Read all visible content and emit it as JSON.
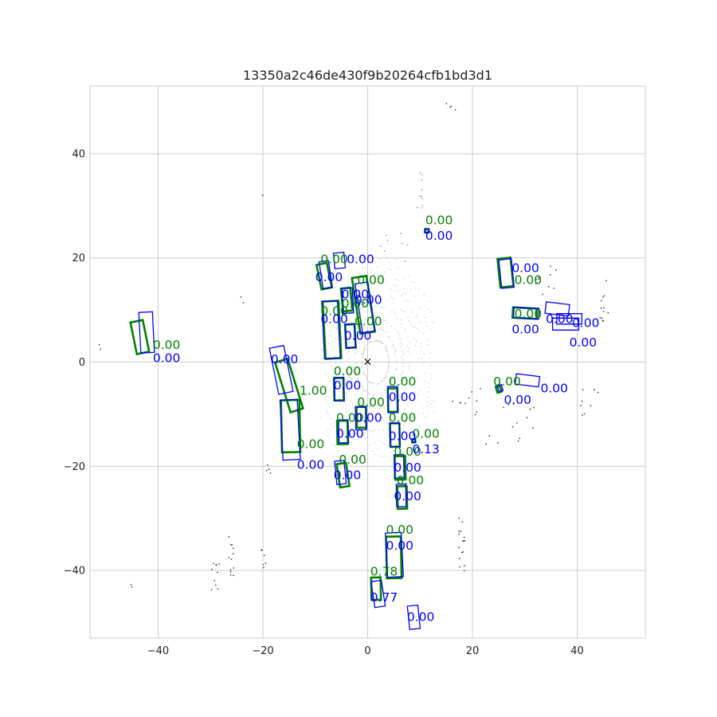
{
  "chart_data": {
    "type": "scatter",
    "title": "13350a2c46de430f9b20264cfb1bd3d1",
    "xlabel": "",
    "ylabel": "",
    "xlim": [
      -53,
      53
    ],
    "ylim": [
      -53,
      53
    ],
    "xticks": [
      -40,
      -20,
      0,
      20,
      40
    ],
    "yticks": [
      -40,
      -20,
      0,
      20,
      40
    ],
    "xtick_labels": [
      "−40",
      "−20",
      "0",
      "20",
      "40"
    ],
    "ytick_labels": [
      "−40",
      "−20",
      "0",
      "20",
      "40"
    ],
    "grid": true,
    "ego_marker": {
      "x": 0,
      "y": 0,
      "symbol": "×",
      "color": "#000000"
    },
    "colors": {
      "ground_truth": "#008000",
      "prediction": "#0000ff",
      "lidar_near": "#c8c8c8",
      "lidar_far": "#444444"
    },
    "ground_truth_boxes": [
      {
        "cx": -43.5,
        "cy": 4.8,
        "w": 2.4,
        "l": 6.2,
        "yaw": 0.2,
        "label": "0.00",
        "lx": -41,
        "ly": 2.5
      },
      {
        "cx": -8.3,
        "cy": 16.5,
        "w": 2.0,
        "l": 4.8,
        "yaw": 0.2,
        "label": "0.00",
        "lx": -9,
        "ly": 19
      },
      {
        "cx": -6.8,
        "cy": 6.2,
        "w": 3.0,
        "l": 11.0,
        "yaw": 0.05,
        "label": "0.00",
        "lx": -9,
        "ly": 9
      },
      {
        "cx": -4.0,
        "cy": 12.0,
        "w": 1.8,
        "l": 4.4,
        "yaw": 0.1,
        "label": "0.00",
        "lx": -5,
        "ly": 10.5
      },
      {
        "cx": -3.3,
        "cy": 5.0,
        "w": 1.8,
        "l": 4.5,
        "yaw": 0.05,
        "label": "0.00",
        "lx": -2.5,
        "ly": 7
      },
      {
        "cx": -0.8,
        "cy": 11.0,
        "w": 2.8,
        "l": 10.8,
        "yaw": 0.15,
        "label": "0.00",
        "lx": -2,
        "ly": 15
      },
      {
        "cx": -5.5,
        "cy": -5.2,
        "w": 1.8,
        "l": 4.3,
        "yaw": 0.02,
        "label": "0.00",
        "lx": -6.5,
        "ly": -2.5
      },
      {
        "cx": -15.0,
        "cy": -4.5,
        "w": 2.5,
        "l": 10.0,
        "yaw": 0.3,
        "label": "1.00",
        "lx": -13,
        "ly": -6.3
      },
      {
        "cx": -14.7,
        "cy": -12.3,
        "w": 3.5,
        "l": 10.0,
        "yaw": 0.02,
        "label": "0.00",
        "lx": -13.5,
        "ly": -16.5
      },
      {
        "cx": -4.8,
        "cy": -13.5,
        "w": 2.0,
        "l": 4.5,
        "yaw": 0.02,
        "label": "0.00",
        "lx": -6,
        "ly": -11.5
      },
      {
        "cx": -1.2,
        "cy": -10.6,
        "w": 1.8,
        "l": 4.0,
        "yaw": 0.02,
        "label": "0.00",
        "lx": -2,
        "ly": -8.5
      },
      {
        "cx": 4.8,
        "cy": -7.3,
        "w": 1.8,
        "l": 4.5,
        "yaw": 0.02,
        "label": "0.00",
        "lx": 4,
        "ly": -4.5
      },
      {
        "cx": 5.2,
        "cy": -14.0,
        "w": 1.8,
        "l": 4.5,
        "yaw": 0.02,
        "label": "0.00",
        "lx": 4,
        "ly": -11.5
      },
      {
        "cx": -4.7,
        "cy": -21.7,
        "w": 1.8,
        "l": 4.5,
        "yaw": 0.15,
        "label": "0.00",
        "lx": -5.5,
        "ly": -19.5
      },
      {
        "cx": 6.2,
        "cy": -20.3,
        "w": 2.0,
        "l": 4.5,
        "yaw": 0.02,
        "label": "0.00",
        "lx": 5,
        "ly": -18
      },
      {
        "cx": 6.6,
        "cy": -26.0,
        "w": 1.8,
        "l": 4.3,
        "yaw": 0.02,
        "label": "0.00",
        "lx": 5.5,
        "ly": -23.5
      },
      {
        "cx": 5.0,
        "cy": -37.5,
        "w": 2.8,
        "l": 8.0,
        "yaw": 0.02,
        "label": "0.00",
        "lx": 3.5,
        "ly": -33
      },
      {
        "cx": 1.6,
        "cy": -43.5,
        "w": 1.8,
        "l": 4.3,
        "yaw": 0.02,
        "label": "0.78",
        "lx": 0.5,
        "ly": -41
      },
      {
        "cx": 8.8,
        "cy": -15.1,
        "w": 0.6,
        "l": 0.6,
        "yaw": 0.0,
        "label": "0.00",
        "lx": 8.5,
        "ly": -14.5
      },
      {
        "cx": 11.3,
        "cy": 25.2,
        "w": 0.7,
        "l": 0.7,
        "yaw": 0.0,
        "label": "0.00",
        "lx": 11,
        "ly": 26.5
      },
      {
        "cx": 26.3,
        "cy": 17.2,
        "w": 2.5,
        "l": 5.5,
        "yaw": 0.1,
        "label": "0.00",
        "lx": 28,
        "ly": 15
      },
      {
        "cx": 30.0,
        "cy": 9.4,
        "w": 2.0,
        "l": 4.6,
        "yaw": 1.52,
        "label": "0.00",
        "lx": 28,
        "ly": 8.5
      },
      {
        "cx": 25.0,
        "cy": -5.2,
        "w": 0.8,
        "l": 1.2,
        "yaw": 0.3,
        "label": "0.00",
        "lx": 24,
        "ly": -4.5
      }
    ],
    "prediction_boxes": [
      {
        "cx": -42.2,
        "cy": 5.7,
        "w": 2.6,
        "l": 7.8,
        "yaw": 0.05,
        "label": "0.00",
        "lx": -41,
        "ly": 0
      },
      {
        "cx": -5.4,
        "cy": 19.5,
        "w": 2.0,
        "l": 3.0,
        "yaw": 0.1,
        "label": "0.00",
        "lx": -4,
        "ly": 19
      },
      {
        "cx": -8.0,
        "cy": 16.8,
        "w": 1.8,
        "l": 5.2,
        "yaw": 0.15,
        "label": "0.00",
        "lx": -10,
        "ly": 15.5
      },
      {
        "cx": -7.0,
        "cy": 6.2,
        "w": 3.0,
        "l": 11.0,
        "yaw": 0.05,
        "label": "0.00",
        "lx": -9,
        "ly": 7.5
      },
      {
        "cx": -3.8,
        "cy": 11.8,
        "w": 2.0,
        "l": 4.8,
        "yaw": 0.05,
        "label": "0.00",
        "lx": -5,
        "ly": 12.2
      },
      {
        "cx": -3.3,
        "cy": 5.0,
        "w": 1.8,
        "l": 4.5,
        "yaw": 0.05,
        "label": "0.00",
        "lx": -4.5,
        "ly": 4.3
      },
      {
        "cx": -0.5,
        "cy": 10.5,
        "w": 2.4,
        "l": 9.5,
        "yaw": 0.15,
        "label": "0.00",
        "lx": -2.5,
        "ly": 11.2
      },
      {
        "cx": -16.5,
        "cy": -1.5,
        "w": 2.8,
        "l": 9.0,
        "yaw": 0.2,
        "label": "0.00",
        "lx": -18.5,
        "ly": -0.2
      },
      {
        "cx": -14.8,
        "cy": -13.0,
        "w": 3.3,
        "l": 11.5,
        "yaw": 0.05,
        "label": "0.00",
        "lx": -13.5,
        "ly": -20.5
      },
      {
        "cx": -5.4,
        "cy": -5.2,
        "w": 1.8,
        "l": 4.5,
        "yaw": 0.02,
        "label": "0.00",
        "lx": -6.5,
        "ly": -5.3
      },
      {
        "cx": -4.6,
        "cy": -13.3,
        "w": 1.8,
        "l": 4.4,
        "yaw": 0.02,
        "label": "0.00",
        "lx": -6,
        "ly": -14.5
      },
      {
        "cx": -1.3,
        "cy": -10.8,
        "w": 2.0,
        "l": 4.4,
        "yaw": 0.02,
        "label": "0.00",
        "lx": -2.5,
        "ly": -11.5
      },
      {
        "cx": 4.8,
        "cy": -7.2,
        "w": 1.8,
        "l": 5.0,
        "yaw": 0.02,
        "label": "0.00",
        "lx": 4,
        "ly": -7.5
      },
      {
        "cx": 5.2,
        "cy": -14.0,
        "w": 1.8,
        "l": 4.5,
        "yaw": 0.02,
        "label": "0.00",
        "lx": 4,
        "ly": -15
      },
      {
        "cx": 8.8,
        "cy": -15.1,
        "w": 0.6,
        "l": 0.6,
        "yaw": 0.0,
        "label": "0.13",
        "lx": 8.5,
        "ly": -17.5
      },
      {
        "cx": -5.2,
        "cy": -21.2,
        "w": 1.8,
        "l": 4.5,
        "yaw": 0.1,
        "label": "0.00",
        "lx": -6.5,
        "ly": -22.5
      },
      {
        "cx": 6.0,
        "cy": -20.0,
        "w": 1.8,
        "l": 4.5,
        "yaw": 0.02,
        "label": "0.00",
        "lx": 5,
        "ly": -21
      },
      {
        "cx": 6.4,
        "cy": -25.6,
        "w": 1.8,
        "l": 4.3,
        "yaw": 0.02,
        "label": "0.00",
        "lx": 5,
        "ly": -26.5
      },
      {
        "cx": 5.1,
        "cy": -37.0,
        "w": 3.0,
        "l": 8.5,
        "yaw": 0.05,
        "label": "0.00",
        "lx": 3.5,
        "ly": -36
      },
      {
        "cx": 2.0,
        "cy": -44.5,
        "w": 2.0,
        "l": 5.0,
        "yaw": 0.15,
        "label": "0.77",
        "lx": 0.5,
        "ly": -46
      },
      {
        "cx": 8.8,
        "cy": -49.0,
        "w": 2.0,
        "l": 4.5,
        "yaw": 0.1,
        "label": "0.00",
        "lx": 7.5,
        "ly": -49.7
      },
      {
        "cx": 11.3,
        "cy": 25.2,
        "w": 0.7,
        "l": 0.7,
        "yaw": 0.0,
        "label": "0.00",
        "lx": 11,
        "ly": 23.5
      },
      {
        "cx": 26.5,
        "cy": 17.0,
        "w": 2.4,
        "l": 5.5,
        "yaw": 0.1,
        "label": "0.00",
        "lx": 27.5,
        "ly": 17.3
      },
      {
        "cx": 30.3,
        "cy": 9.4,
        "w": 2.0,
        "l": 4.8,
        "yaw": 1.52,
        "label": "0.00",
        "lx": 27.5,
        "ly": 5.5
      },
      {
        "cx": 36.2,
        "cy": 10.2,
        "w": 2.2,
        "l": 4.5,
        "yaw": 1.45,
        "label": "0.00",
        "lx": 34,
        "ly": 7.5
      },
      {
        "cx": 37.8,
        "cy": 7.3,
        "w": 2.3,
        "l": 5.0,
        "yaw": 1.57,
        "label": "0.00",
        "lx": 38.5,
        "ly": 3
      },
      {
        "cx": 38.5,
        "cy": 8.3,
        "w": 2.0,
        "l": 4.8,
        "yaw": 1.57,
        "label": "0.00",
        "lx": 39,
        "ly": 6.7
      },
      {
        "cx": 30.5,
        "cy": -3.5,
        "w": 2.0,
        "l": 4.5,
        "yaw": 1.45,
        "label": "0.00",
        "lx": 33,
        "ly": -5.8
      },
      {
        "cx": 25.3,
        "cy": -5.0,
        "w": 0.8,
        "l": 1.2,
        "yaw": 0.3,
        "label": "0.00",
        "lx": 26,
        "ly": -8
      }
    ]
  }
}
